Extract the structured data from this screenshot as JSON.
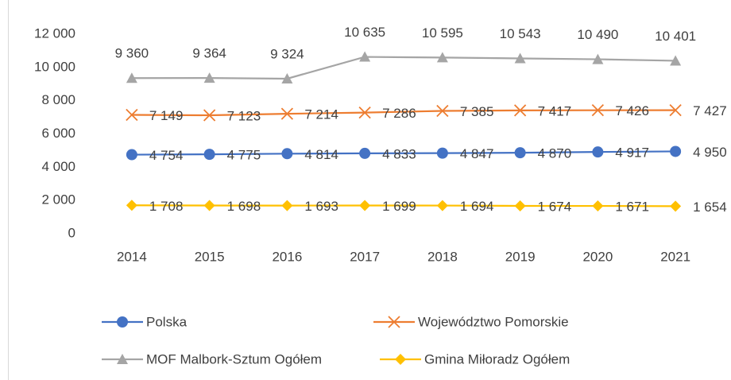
{
  "chart_data": {
    "type": "line",
    "categories": [
      "2014",
      "2015",
      "2016",
      "2017",
      "2018",
      "2019",
      "2020",
      "2021"
    ],
    "series": [
      {
        "name": "Polska",
        "color": "#4472c4",
        "marker": "circle",
        "values": [
          4754,
          4775,
          4814,
          4833,
          4847,
          4870,
          4917,
          4950
        ],
        "value_labels": [
          "4 754",
          "4 775",
          "4 814",
          "4 833",
          "4 847",
          "4 870",
          "4 917",
          "4 950"
        ]
      },
      {
        "name": "Województwo Pomorskie",
        "color": "#ed7d31",
        "marker": "x",
        "values": [
          7149,
          7123,
          7214,
          7286,
          7385,
          7417,
          7426,
          7427
        ],
        "value_labels": [
          "7 149",
          "7 123",
          "7 214",
          "7 286",
          "7 385",
          "7 417",
          "7 426",
          "7 427"
        ]
      },
      {
        "name": "MOF Malbork-Sztum Ogółem",
        "color": "#a5a5a5",
        "marker": "triangle",
        "values": [
          9360,
          9364,
          9324,
          10635,
          10595,
          10543,
          10490,
          10401
        ],
        "value_labels": [
          "9 360",
          "9 364",
          "9 324",
          "10 635",
          "10 595",
          "10 543",
          "10 490",
          "10 401"
        ]
      },
      {
        "name": "Gmina Miłoradz Ogółem",
        "color": "#ffc000",
        "marker": "diamond",
        "values": [
          1708,
          1698,
          1693,
          1699,
          1694,
          1674,
          1671,
          1654
        ],
        "value_labels": [
          "1 708",
          "1 698",
          "1 693",
          "1 699",
          "1 694",
          "1 674",
          "1 671",
          "1 654"
        ]
      }
    ],
    "ylim": [
      0,
      12000
    ],
    "yticks": [
      0,
      {
        "value": 2000,
        "label": "2 000"
      },
      {
        "value": 4000,
        "label": "4 000"
      },
      {
        "value": 6000,
        "label": "6 000"
      },
      {
        "value": 8000,
        "label": "8 000"
      },
      {
        "value": 10000,
        "label": "10 000"
      },
      {
        "value": 12000,
        "label": "12 000"
      }
    ],
    "grid": false,
    "legend": "bottom"
  }
}
